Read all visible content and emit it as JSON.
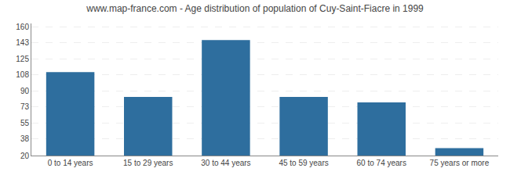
{
  "chart_data": {
    "type": "bar",
    "title": "www.map-france.com - Age distribution of population of Cuy-Saint-Fiacre in 1999",
    "categories": [
      "0 to 14 years",
      "15 to 29 years",
      "30 to 44 years",
      "45 to 59 years",
      "60 to 74 years",
      "75 years or more"
    ],
    "values": [
      111,
      84,
      146,
      84,
      78,
      28
    ],
    "color": "#2e6e9e",
    "ylim": [
      20,
      164
    ],
    "yticks": [
      20,
      38,
      55,
      73,
      90,
      108,
      125,
      143,
      160
    ],
    "grid": true
  }
}
